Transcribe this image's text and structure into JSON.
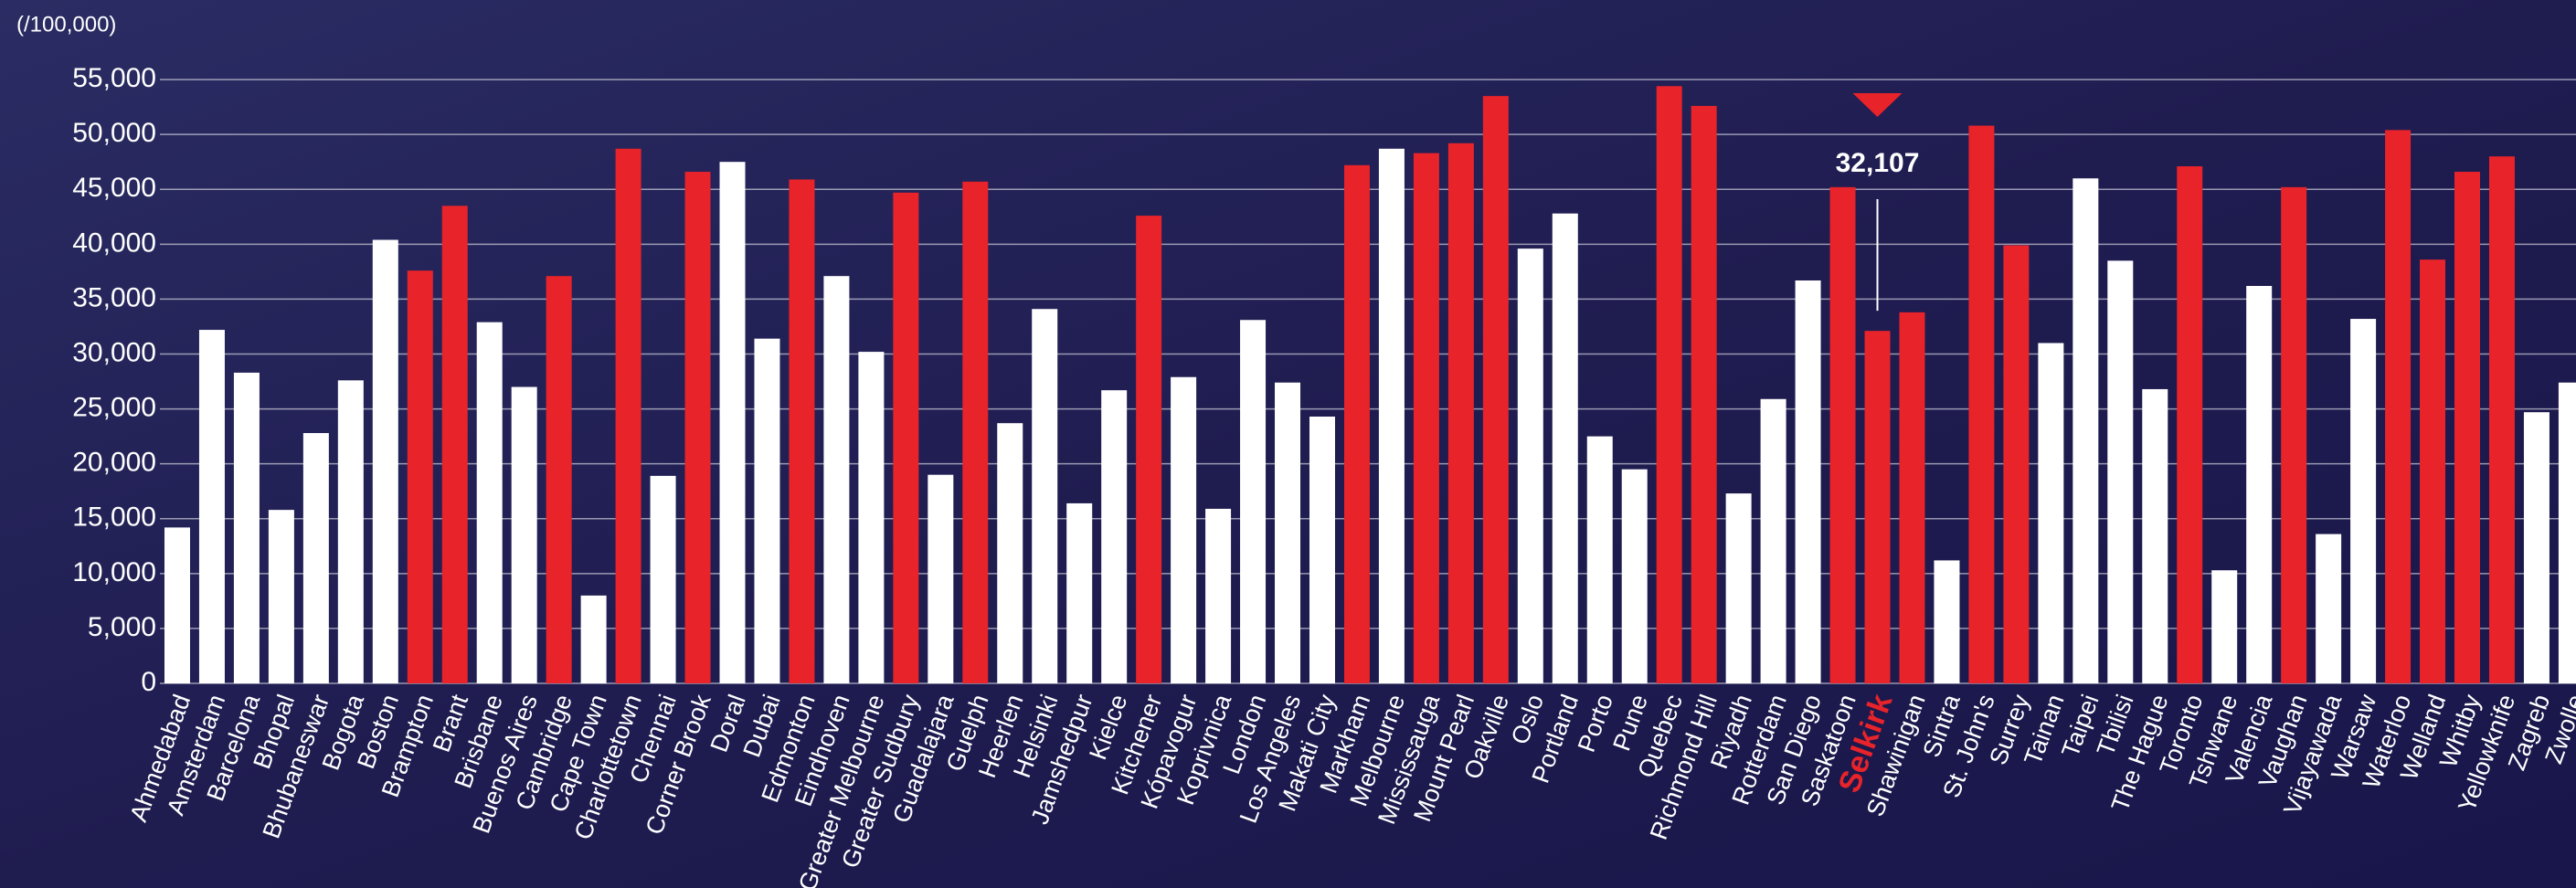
{
  "chart_data": {
    "type": "bar",
    "y_unit": "(/100,000)",
    "categories": [
      "Ahmedabad",
      "Amsterdam",
      "Barcelona",
      "Bhopal",
      "Bhubaneswar",
      "Bogota",
      "Boston",
      "Brampton",
      "Brant",
      "Brisbane",
      "Buenos Aires",
      "Cambridge",
      "Cape Town",
      "Charlottetown",
      "Chennai",
      "Corner Brook",
      "Doral",
      "Dubai",
      "Edmonton",
      "Eindhoven",
      "Greater Melbourne",
      "Greater Sudbury",
      "Guadalajara",
      "Guelph",
      "Heerlen",
      "Helsinki",
      "Jamshedpur",
      "Kielce",
      "Kitchener",
      "Kópavogur",
      "Koprivnica",
      "London",
      "Los Angeles",
      "Makati City",
      "Markham",
      "Melbourne",
      "Mississauga",
      "Mount Pearl",
      "Oakville",
      "Oslo",
      "Portland",
      "Porto",
      "Pune",
      "Quebec",
      "Richmond Hill",
      "Riyadh",
      "Rotterdam",
      "San Diego",
      "Saskatoon",
      "Selkirk",
      "Shawinigan",
      "Sintra",
      "St. John's",
      "Surrey",
      "Tainan",
      "Taipei",
      "Tbilisi",
      "The Hague",
      "Toronto",
      "Tshwane",
      "Valencia",
      "Vaughan",
      "Vijayawada",
      "Warsaw",
      "Waterloo",
      "Welland",
      "Whitby",
      "Yellowknife",
      "Zagreb",
      "Zwolle"
    ],
    "values": [
      14200,
      32200,
      28300,
      15800,
      22800,
      27600,
      40400,
      37600,
      43500,
      32900,
      27000,
      37100,
      8000,
      48700,
      18900,
      46600,
      47500,
      31400,
      45900,
      37100,
      30200,
      44700,
      19000,
      45700,
      23700,
      34100,
      16400,
      26700,
      42600,
      27900,
      15900,
      33100,
      27400,
      24300,
      47200,
      48700,
      48300,
      49200,
      53500,
      39600,
      42800,
      22500,
      19500,
      54400,
      52600,
      17300,
      25900,
      36700,
      45200,
      32107,
      33800,
      11200,
      50800,
      39900,
      31000,
      46000,
      38500,
      26800,
      47100,
      10300,
      36200,
      45200,
      13600,
      33200,
      50400,
      38600,
      46600,
      48000,
      24700,
      27400
    ],
    "value_labels": [
      null,
      null,
      null,
      null,
      null,
      null,
      null,
      null,
      null,
      null,
      null,
      null,
      null,
      null,
      null,
      null,
      null,
      null,
      null,
      null,
      null,
      null,
      null,
      null,
      null,
      null,
      null,
      null,
      null,
      null,
      null,
      null,
      null,
      null,
      null,
      null,
      null,
      null,
      null,
      null,
      null,
      null,
      null,
      null,
      null,
      null,
      null,
      null,
      null,
      "32,107",
      null,
      null,
      null,
      null,
      null,
      null,
      null,
      null,
      null,
      null,
      null,
      null,
      null,
      null,
      null,
      null,
      null,
      null,
      null,
      null
    ],
    "colors": [
      "#ffffff",
      "#ffffff",
      "#ffffff",
      "#ffffff",
      "#ffffff",
      "#ffffff",
      "#ffffff",
      "#e8232a",
      "#e8232a",
      "#ffffff",
      "#ffffff",
      "#e8232a",
      "#ffffff",
      "#e8232a",
      "#ffffff",
      "#e8232a",
      "#ffffff",
      "#ffffff",
      "#e8232a",
      "#ffffff",
      "#ffffff",
      "#e8232a",
      "#ffffff",
      "#e8232a",
      "#ffffff",
      "#ffffff",
      "#ffffff",
      "#ffffff",
      "#e8232a",
      "#ffffff",
      "#ffffff",
      "#ffffff",
      "#ffffff",
      "#ffffff",
      "#e8232a",
      "#ffffff",
      "#e8232a",
      "#e8232a",
      "#e8232a",
      "#ffffff",
      "#ffffff",
      "#ffffff",
      "#ffffff",
      "#e8232a",
      "#e8232a",
      "#ffffff",
      "#ffffff",
      "#ffffff",
      "#e8232a",
      "#e8232a",
      "#e8232a",
      "#ffffff",
      "#e8232a",
      "#e8232a",
      "#ffffff",
      "#ffffff",
      "#ffffff",
      "#ffffff",
      "#e8232a",
      "#ffffff",
      "#ffffff",
      "#e8232a",
      "#ffffff",
      "#ffffff",
      "#e8232a",
      "#e8232a",
      "#e8232a",
      "#e8232a",
      "#ffffff",
      "#ffffff"
    ],
    "ylim": [
      0,
      60000
    ],
    "yticks": [
      0,
      {
        "value": 5000,
        "label": "5,000"
      },
      {
        "value": 10000,
        "label": "10,000"
      },
      {
        "value": 15000,
        "label": "15,000"
      },
      {
        "value": 20000,
        "label": "20,000"
      },
      {
        "value": 25000,
        "label": "25,000"
      },
      {
        "value": 30000,
        "label": "30,000"
      },
      {
        "value": 35000,
        "label": "35,000"
      },
      {
        "value": 40000,
        "label": "40,000"
      },
      {
        "value": 45000,
        "label": "45,000"
      },
      {
        "value": 50000,
        "label": "50,000"
      },
      {
        "value": 55000,
        "label": "55,000"
      }
    ],
    "grid": true
  }
}
